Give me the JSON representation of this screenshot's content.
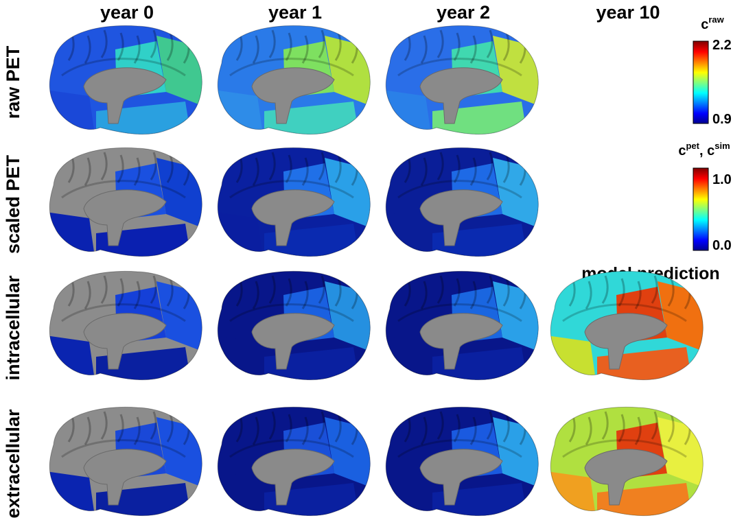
{
  "columns": [
    "year 0",
    "year 1",
    "year 2",
    "year 10"
  ],
  "rows": [
    "raw PET",
    "scaled PET",
    "intracellular",
    "extracellular"
  ],
  "annotation": "model prediction",
  "colorbars": [
    {
      "label": {
        "base": "c",
        "sup": "raw"
      },
      "top": "2.2",
      "bottom": "0.9"
    },
    {
      "label": {
        "base": "c",
        "sup": "pet",
        "sep": ", ",
        "base2": "c",
        "sup2": "sim"
      },
      "top": "1.0",
      "bottom": "0.0"
    }
  ]
}
